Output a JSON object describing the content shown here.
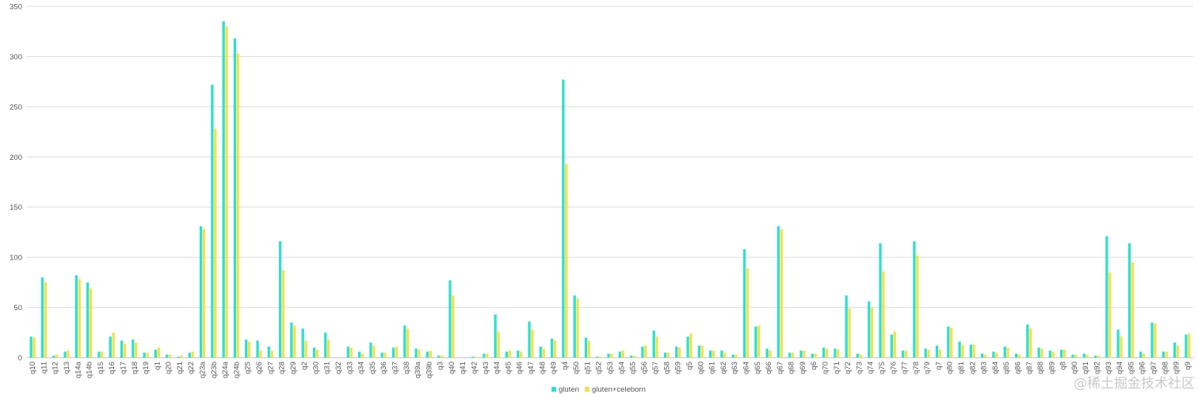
{
  "chart_data": {
    "type": "bar",
    "title": "",
    "xlabel": "",
    "ylabel": "",
    "ylim": [
      0,
      350
    ],
    "yticks": [
      0,
      50,
      100,
      150,
      200,
      250,
      300,
      350
    ],
    "grid": true,
    "legend_position": "bottom-center",
    "categories": [
      "q10",
      "q11",
      "q12",
      "q13",
      "q14a",
      "q14b",
      "q15",
      "q16",
      "q17",
      "q18",
      "q19",
      "q1",
      "q20",
      "q21",
      "q22",
      "q23a",
      "q23b",
      "q24a",
      "q24b",
      "q25",
      "q26",
      "q27",
      "q28",
      "q29",
      "q2",
      "q30",
      "q31",
      "q32",
      "q33",
      "q34",
      "q35",
      "q36",
      "q37",
      "q38",
      "q39a",
      "q39b",
      "q3",
      "q40",
      "q41",
      "q42",
      "q43",
      "q44",
      "q45",
      "q46",
      "q47",
      "q48",
      "q49",
      "q4",
      "q50",
      "q51",
      "q52",
      "q53",
      "q54",
      "q55",
      "q56",
      "q57",
      "q58",
      "q59",
      "q5",
      "q60",
      "q61",
      "q62",
      "q63",
      "q64",
      "q65",
      "q66",
      "q67",
      "q68",
      "q69",
      "q6",
      "q70",
      "q71",
      "q72",
      "q73",
      "q74",
      "q75",
      "q76",
      "q77",
      "q78",
      "q79",
      "q7",
      "q80",
      "q81",
      "q82",
      "q83",
      "q84",
      "q85",
      "q86",
      "q87",
      "q88",
      "q89",
      "q8",
      "q90",
      "q91",
      "q92",
      "q93",
      "q94",
      "q95",
      "q96",
      "q97",
      "q98",
      "q99",
      "q9"
    ],
    "series": [
      {
        "name": "gluten",
        "color": "#2ee0cf",
        "values": [
          21,
          80,
          2,
          6,
          82,
          75,
          6,
          21,
          17,
          18,
          5,
          8,
          3,
          1,
          5,
          131,
          272,
          335,
          318,
          18,
          17,
          11,
          116,
          35,
          29,
          10,
          25,
          0,
          11,
          6,
          15,
          5,
          10,
          32,
          9,
          6,
          2,
          77,
          0,
          1,
          4,
          43,
          6,
          7,
          36,
          11,
          19,
          277,
          62,
          20,
          1,
          4,
          6,
          2,
          11,
          27,
          5,
          11,
          21,
          12,
          7,
          7,
          3,
          108,
          31,
          9,
          131,
          5,
          7,
          4,
          10,
          9,
          62,
          4,
          56,
          114,
          23,
          7,
          116,
          9,
          12,
          31,
          16,
          13,
          4,
          6,
          11,
          4,
          33,
          10,
          7,
          8,
          3,
          4,
          2,
          121,
          28,
          114,
          6,
          35,
          6,
          15,
          23
        ]
      },
      {
        "name": "gluten+celeborn",
        "color": "#f5e04a",
        "values": [
          20,
          75,
          3,
          7,
          78,
          69,
          6,
          25,
          14,
          15,
          5,
          10,
          3,
          2,
          6,
          128,
          228,
          330,
          303,
          16,
          7,
          7,
          87,
          32,
          17,
          8,
          18,
          0,
          10,
          4,
          12,
          5,
          11,
          29,
          8,
          7,
          2,
          62,
          0,
          1,
          4,
          26,
          7,
          6,
          28,
          9,
          17,
          193,
          59,
          17,
          1,
          4,
          7,
          2,
          12,
          21,
          5,
          10,
          24,
          12,
          7,
          5,
          3,
          89,
          32,
          7,
          128,
          5,
          7,
          4,
          9,
          8,
          49,
          3,
          50,
          86,
          26,
          7,
          102,
          8,
          8,
          30,
          13,
          13,
          3,
          5,
          10,
          3,
          29,
          9,
          6,
          8,
          3,
          3,
          2,
          85,
          21,
          95,
          4,
          34,
          6,
          12,
          24
        ]
      }
    ],
    "watermark": "@稀土掘金技术社区"
  }
}
